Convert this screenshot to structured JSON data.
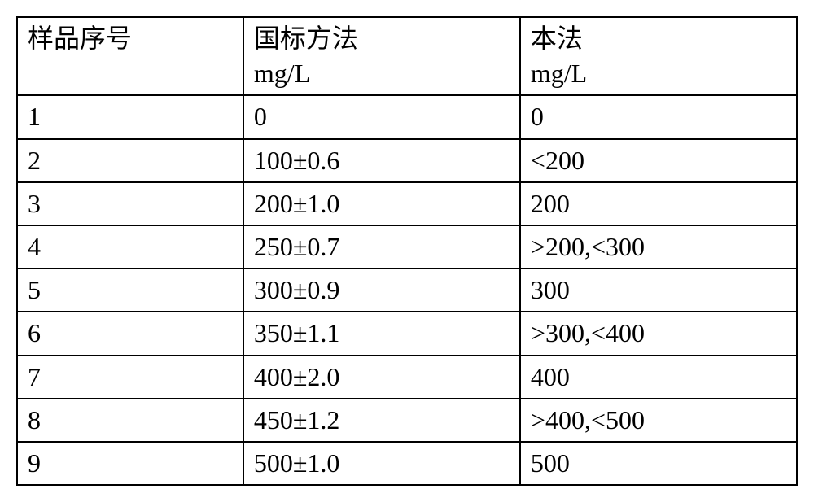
{
  "table": {
    "type": "table",
    "border_color": "#000000",
    "border_width": 2,
    "background_color": "#ffffff",
    "text_color": "#000000",
    "font_size": 32,
    "font_family": "Times New Roman, SimSun, serif",
    "columns": [
      {
        "header_line1": "样品序号",
        "header_line2": "",
        "width_pct": 29,
        "align": "left"
      },
      {
        "header_line1": "国标方法",
        "header_line2": "mg/L",
        "width_pct": 35.5,
        "align": "left"
      },
      {
        "header_line1": "本法",
        "header_line2": "mg/L",
        "width_pct": 35.5,
        "align": "left"
      }
    ],
    "rows": [
      {
        "c0": "1",
        "c1": "0",
        "c2": "0"
      },
      {
        "c0": "2",
        "c1": "100±0.6",
        "c2": "<200"
      },
      {
        "c0": "3",
        "c1": "200±1.0",
        "c2": "200"
      },
      {
        "c0": "4",
        "c1": "250±0.7",
        "c2": ">200,<300"
      },
      {
        "c0": "5",
        "c1": "300±0.9",
        "c2": "300"
      },
      {
        "c0": "6",
        "c1": "350±1.1",
        "c2": ">300,<400"
      },
      {
        "c0": "7",
        "c1": "400±2.0",
        "c2": "400"
      },
      {
        "c0": "8",
        "c1": "450±1.2",
        "c2": ">400,<500"
      },
      {
        "c0": "9",
        "c1": "500±1.0",
        "c2": "500"
      }
    ]
  }
}
